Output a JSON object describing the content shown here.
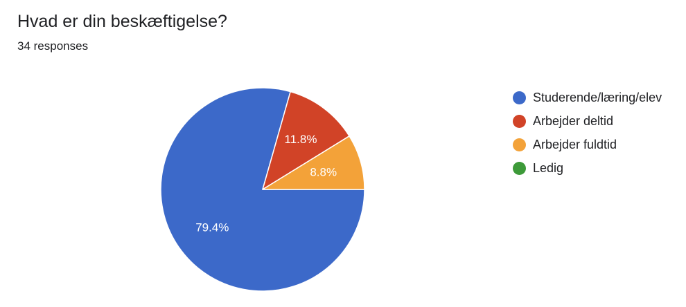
{
  "header": {
    "title": "Hvad er din beskæftigelse?",
    "subtitle": "34 responses"
  },
  "chart_data": {
    "type": "pie",
    "start_angle_deg": 0,
    "direction": "clockwise",
    "legend_position": "right",
    "slices": [
      {
        "label": "Studerende/læring/elev",
        "value": 79.4,
        "display": "79.4%",
        "color": "#3c69c9"
      },
      {
        "label": "Arbejder deltid",
        "value": 11.8,
        "display": "11.8%",
        "color": "#d14327"
      },
      {
        "label": "Arbejder fuldtid",
        "value": 8.8,
        "display": "8.8%",
        "color": "#f3a239"
      },
      {
        "label": "Ledig",
        "value": 0,
        "display": "",
        "color": "#3d9a39"
      }
    ]
  }
}
